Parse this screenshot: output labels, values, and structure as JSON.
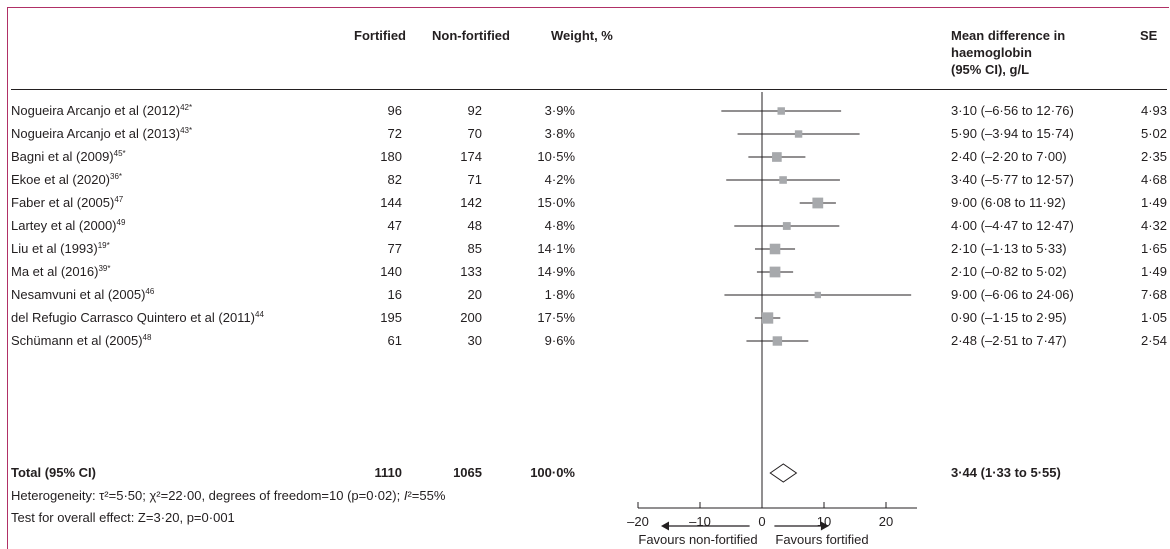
{
  "header": {
    "fortified": "Fortified",
    "non_fortified": "Non-fortified",
    "weight": "Weight, %",
    "mean_difference_line1": "Mean difference in",
    "mean_difference_line2": "haemoglobin",
    "mean_difference_line3": "(95% CI), g/L",
    "se": "SE"
  },
  "studies": [
    {
      "author": "Nogueira Arcanjo et al (2012)",
      "ref": "42*",
      "fortified": "96",
      "non_fortified": "92",
      "weight": "3·9%",
      "ci_text": "3·10 (–6·56 to 12·76)",
      "se": "4·93",
      "md": 3.1,
      "lo": -6.56,
      "hi": 12.76,
      "w": 3.9
    },
    {
      "author": "Nogueira Arcanjo et al (2013)",
      "ref": "43*",
      "fortified": "72",
      "non_fortified": "70",
      "weight": "3·8%",
      "ci_text": "5·90 (–3·94 to 15·74)",
      "se": "5·02",
      "md": 5.9,
      "lo": -3.94,
      "hi": 15.74,
      "w": 3.8
    },
    {
      "author": "Bagni et al (2009)",
      "ref": "45*",
      "fortified": "180",
      "non_fortified": "174",
      "weight": "10·5%",
      "ci_text": "2·40 (–2·20 to 7·00)",
      "se": "2·35",
      "md": 2.4,
      "lo": -2.2,
      "hi": 7.0,
      "w": 10.5
    },
    {
      "author": "Ekoe et al (2020)",
      "ref": "36*",
      "fortified": "82",
      "non_fortified": "71",
      "weight": "4·2%",
      "ci_text": "3·40 (–5·77 to 12·57)",
      "se": "4·68",
      "md": 3.4,
      "lo": -5.77,
      "hi": 12.57,
      "w": 4.2
    },
    {
      "author": "Faber et al (2005)",
      "ref": "47",
      "fortified": "144",
      "non_fortified": "142",
      "weight": "15·0%",
      "ci_text": "9·00 (6·08 to 11·92)",
      "se": "1·49",
      "md": 9.0,
      "lo": 6.08,
      "hi": 11.92,
      "w": 15.0
    },
    {
      "author": "Lartey et al (2000)",
      "ref": "49",
      "fortified": "47",
      "non_fortified": "48",
      "weight": "4·8%",
      "ci_text": "4·00 (–4·47 to 12·47)",
      "se": "4·32",
      "md": 4.0,
      "lo": -4.47,
      "hi": 12.47,
      "w": 4.8
    },
    {
      "author": "Liu et al (1993)",
      "ref": "19*",
      "fortified": "77",
      "non_fortified": "85",
      "weight": "14·1%",
      "ci_text": "2·10 (–1·13 to 5·33)",
      "se": "1·65",
      "md": 2.1,
      "lo": -1.13,
      "hi": 5.33,
      "w": 14.1
    },
    {
      "author": "Ma et al (2016)",
      "ref": "39*",
      "fortified": "140",
      "non_fortified": "133",
      "weight": "14·9%",
      "ci_text": "2·10 (–0·82 to 5·02)",
      "se": "1·49",
      "md": 2.1,
      "lo": -0.82,
      "hi": 5.02,
      "w": 14.9
    },
    {
      "author": "Nesamvuni et al (2005)",
      "ref": "46",
      "fortified": "16",
      "non_fortified": "20",
      "weight": "1·8%",
      "ci_text": "9·00 (–6·06 to 24·06)",
      "se": "7·68",
      "md": 9.0,
      "lo": -6.06,
      "hi": 24.06,
      "w": 1.8
    },
    {
      "author": "del Refugio Carrasco Quintero et al (2011)",
      "ref": "44",
      "fortified": "195",
      "non_fortified": "200",
      "weight": "17·5%",
      "ci_text": "0·90 (–1·15 to 2·95)",
      "se": "1·05",
      "md": 0.9,
      "lo": -1.15,
      "hi": 2.95,
      "w": 17.5
    },
    {
      "author": "Schümann et al (2005)",
      "ref": "48",
      "fortified": "61",
      "non_fortified": "30",
      "weight": "9·6%",
      "ci_text": "2·48 (–2·51 to 7·47)",
      "se": "2·54",
      "md": 2.48,
      "lo": -2.51,
      "hi": 7.47,
      "w": 9.6
    }
  ],
  "total": {
    "label": "Total (95% CI)",
    "fortified": "1110",
    "non_fortified": "1065",
    "weight": "100·0%",
    "ci_text": "3·44 (1·33 to 5·55)",
    "md": 3.44,
    "lo": 1.33,
    "hi": 5.55
  },
  "notes": {
    "heterogeneity_prefix": "Heterogeneity: τ²=5·50; χ²=22·00, degrees of freedom=10 (p=0·02); ",
    "i2_symbol": "I",
    "heterogeneity_suffix": "²=55%",
    "overall_effect": "Test for overall effect: Z=3·20, p=0·001"
  },
  "chart_data": {
    "type": "forest",
    "x_ticks": [
      -20,
      -10,
      0,
      10,
      20
    ],
    "xlim": [
      -20,
      25
    ],
    "favours_left": "Favours non-fortified",
    "favours_right": "Favours fortified",
    "colors": {
      "square": "#a7a9ac",
      "line": "#231f20",
      "border": "#b03066"
    }
  }
}
